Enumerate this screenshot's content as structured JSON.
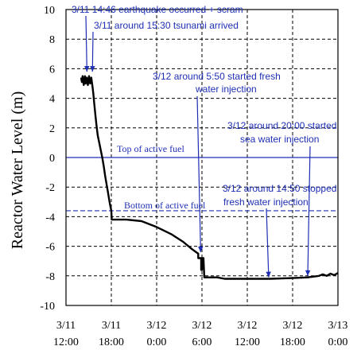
{
  "chart_data": {
    "type": "line",
    "title": "",
    "xlabel": "",
    "ylabel": "Reactor Water Level (m)",
    "x_ticks": [
      {
        "line1": "3/11",
        "line2": "12:00",
        "t": 0
      },
      {
        "line1": "3/11",
        "line2": "18:00",
        "t": 6
      },
      {
        "line1": "3/12",
        "line2": "0:00",
        "t": 12
      },
      {
        "line1": "3/12",
        "line2": "6:00",
        "t": 18
      },
      {
        "line1": "3/12",
        "line2": "12:00",
        "t": 24
      },
      {
        "line1": "3/12",
        "line2": "18:00",
        "t": 30
      },
      {
        "line1": "3/13",
        "line2": "0:00",
        "t": 36
      }
    ],
    "xlim": [
      0,
      36
    ],
    "ylim": [
      -10,
      10
    ],
    "y_ticks": [
      10,
      8,
      6,
      4,
      2,
      0,
      -2,
      -4,
      -6,
      -8,
      -10
    ],
    "grid": true,
    "reference_lines": [
      {
        "label": "Top of active fuel",
        "y": 0,
        "color": "#1e2fb4"
      },
      {
        "label": "Bottom of active fuel",
        "y": -3.6,
        "color": "#1e2fb4"
      }
    ],
    "series": [
      {
        "name": "",
        "color": "#000000",
        "points": [
          [
            2.0,
            5.4
          ],
          [
            2.1,
            5.1
          ],
          [
            2.2,
            5.5
          ],
          [
            2.35,
            4.9
          ],
          [
            2.5,
            5.5
          ],
          [
            2.6,
            5.0
          ],
          [
            2.75,
            5.4
          ],
          [
            2.9,
            4.9
          ],
          [
            3.05,
            5.5
          ],
          [
            3.2,
            5.0
          ],
          [
            3.35,
            5.4
          ],
          [
            3.5,
            4.8
          ],
          [
            3.62,
            4.3
          ],
          [
            3.75,
            3.6
          ],
          [
            3.9,
            2.8
          ],
          [
            4.05,
            2.1
          ],
          [
            4.2,
            1.5
          ],
          [
            4.4,
            1.0
          ],
          [
            4.6,
            0.5
          ],
          [
            4.8,
            0.0
          ],
          [
            5.0,
            -0.6
          ],
          [
            5.2,
            -1.3
          ],
          [
            5.5,
            -2.2
          ],
          [
            5.8,
            -3.1
          ],
          [
            6.0,
            -3.6
          ],
          [
            6.05,
            -4.2
          ],
          [
            8.0,
            -4.2
          ],
          [
            10.0,
            -4.3
          ],
          [
            12.0,
            -4.7
          ],
          [
            14.0,
            -5.2
          ],
          [
            15.5,
            -5.7
          ],
          [
            16.7,
            -6.2
          ],
          [
            17.5,
            -6.5
          ],
          [
            17.5,
            -6.8
          ],
          [
            17.9,
            -6.8
          ],
          [
            17.9,
            -7.6
          ],
          [
            18.0,
            -7.6
          ],
          [
            18.0,
            -6.8
          ],
          [
            18.2,
            -6.8
          ],
          [
            18.3,
            -8.1
          ],
          [
            20.0,
            -8.1
          ],
          [
            21.0,
            -8.2
          ],
          [
            24.0,
            -8.2
          ],
          [
            27.0,
            -8.2
          ],
          [
            30.0,
            -8.15
          ],
          [
            32.0,
            -8.1
          ],
          [
            33.5,
            -8.0
          ],
          [
            34.0,
            -7.9
          ],
          [
            34.5,
            -8.0
          ],
          [
            35.0,
            -7.85
          ],
          [
            35.5,
            -7.95
          ],
          [
            36.0,
            -7.8
          ]
        ]
      }
    ],
    "annotations": [
      {
        "text": "3/11 14:46 earthquake occurred + scram",
        "x": 2.77,
        "y": 5.8
      },
      {
        "text": "3/11 around 15:30 tsunami arrived",
        "x": 3.5,
        "y": 5.8
      },
      {
        "text": "3/12 around 5:50 started fresh",
        "text2": "water injection",
        "x": 17.83,
        "y": -6.4
      },
      {
        "text": "3/12 around 20:00 started",
        "text2": "sea water injection",
        "x": 32.0,
        "y": -8.0
      },
      {
        "text": "3/12 around 14:50 stopped",
        "text2": "fresh water injection",
        "x": 26.83,
        "y": -8.1
      }
    ]
  }
}
